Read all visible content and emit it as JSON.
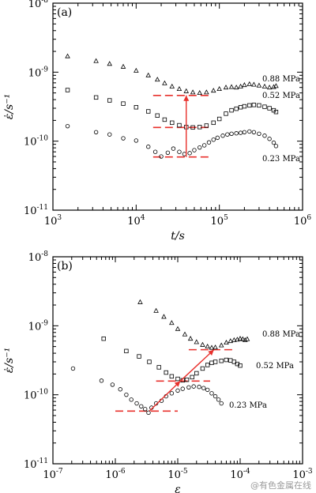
{
  "watermark": "@有色金属在线",
  "chart_data": [
    {
      "type": "scatter",
      "panel_label": "(a)",
      "xlabel": "t/s",
      "ylabel": "ε̇/s⁻¹",
      "xscale": "log",
      "yscale": "log",
      "xlim": [
        1000,
        1000000
      ],
      "ylim": [
        1e-11,
        1e-08
      ],
      "x_ticks": [
        {
          "value": 1000,
          "label": "10",
          "exp": "3"
        },
        {
          "value": 10000,
          "label": "10",
          "exp": "4"
        },
        {
          "value": 100000,
          "label": "10",
          "exp": "5"
        },
        {
          "value": 1000000,
          "label": "10",
          "exp": "6"
        }
      ],
      "y_ticks": [
        {
          "value": 1e-08,
          "label": "10",
          "exp": "-8"
        },
        {
          "value": 1e-09,
          "label": "10",
          "exp": "-9"
        },
        {
          "value": 1e-10,
          "label": "10",
          "exp": "-10"
        },
        {
          "value": 1e-11,
          "label": "10",
          "exp": "-11"
        }
      ],
      "series": [
        {
          "name": "0.88 MPa",
          "marker": "triangle",
          "points": [
            [
              1500,
              1.7e-09
            ],
            [
              3300,
              1.45e-09
            ],
            [
              4800,
              1.32e-09
            ],
            [
              7000,
              1.2e-09
            ],
            [
              10000,
              1.05e-09
            ],
            [
              14000,
              9e-10
            ],
            [
              18000,
              7.8e-10
            ],
            [
              22000,
              6.9e-10
            ],
            [
              27000,
              6.2e-10
            ],
            [
              33000,
              5.7e-10
            ],
            [
              40000,
              5.3e-10
            ],
            [
              48000,
              5.1e-10
            ],
            [
              58000,
              5e-10
            ],
            [
              70000,
              5.1e-10
            ],
            [
              85000,
              5.4e-10
            ],
            [
              100000,
              5.7e-10
            ],
            [
              120000,
              6e-10
            ],
            [
              140000,
              6.1e-10
            ],
            [
              160000,
              6e-10
            ],
            [
              180000,
              6.2e-10
            ],
            [
              200000,
              6.5e-10
            ],
            [
              230000,
              6.7e-10
            ],
            [
              260000,
              6.6e-10
            ],
            [
              300000,
              6.4e-10
            ],
            [
              350000,
              6.2e-10
            ],
            [
              400000,
              6e-10
            ],
            [
              450000,
              6.1e-10
            ],
            [
              480000,
              6.3e-10
            ]
          ]
        },
        {
          "name": "0.52 MPa",
          "marker": "square",
          "points": [
            [
              1500,
              5.5e-10
            ],
            [
              3300,
              4.3e-10
            ],
            [
              4800,
              3.9e-10
            ],
            [
              7000,
              3.5e-10
            ],
            [
              10000,
              3.1e-10
            ],
            [
              14000,
              2.7e-10
            ],
            [
              18000,
              2.35e-10
            ],
            [
              22000,
              2.05e-10
            ],
            [
              27000,
              1.85e-10
            ],
            [
              33000,
              1.7e-10
            ],
            [
              40000,
              1.6e-10
            ],
            [
              48000,
              1.58e-10
            ],
            [
              58000,
              1.6e-10
            ],
            [
              70000,
              1.68e-10
            ],
            [
              85000,
              1.85e-10
            ],
            [
              100000,
              2.1e-10
            ],
            [
              120000,
              2.5e-10
            ],
            [
              140000,
              2.8e-10
            ],
            [
              160000,
              2.95e-10
            ],
            [
              180000,
              3.1e-10
            ],
            [
              200000,
              3.2e-10
            ],
            [
              230000,
              3.3e-10
            ],
            [
              260000,
              3.35e-10
            ],
            [
              300000,
              3.3e-10
            ],
            [
              350000,
              3.15e-10
            ],
            [
              400000,
              3e-10
            ],
            [
              450000,
              2.8e-10
            ],
            [
              480000,
              2.65e-10
            ]
          ]
        },
        {
          "name": "0.23 MPa",
          "marker": "circle",
          "points": [
            [
              1500,
              1.65e-10
            ],
            [
              3300,
              1.35e-10
            ],
            [
              4800,
              1.25e-10
            ],
            [
              7000,
              1.1e-10
            ],
            [
              10000,
              1.02e-10
            ],
            [
              14000,
              8.3e-11
            ],
            [
              17000,
              7e-11
            ],
            [
              20000,
              6e-11
            ],
            [
              24000,
              6.8e-11
            ],
            [
              28000,
              7.8e-11
            ],
            [
              33000,
              7e-11
            ],
            [
              38000,
              6.5e-11
            ],
            [
              44000,
              6.7e-11
            ],
            [
              50000,
              7.4e-11
            ],
            [
              58000,
              8.1e-11
            ],
            [
              66000,
              8.7e-11
            ],
            [
              75000,
              9.6e-11
            ],
            [
              85000,
              1.05e-10
            ],
            [
              95000,
              1.12e-10
            ],
            [
              110000,
              1.2e-10
            ],
            [
              125000,
              1.25e-10
            ],
            [
              140000,
              1.28e-10
            ],
            [
              160000,
              1.3e-10
            ],
            [
              180000,
              1.32e-10
            ],
            [
              200000,
              1.35e-10
            ],
            [
              230000,
              1.38e-10
            ],
            [
              260000,
              1.35e-10
            ],
            [
              300000,
              1.28e-10
            ],
            [
              350000,
              1.2e-10
            ],
            [
              400000,
              1.08e-10
            ],
            [
              450000,
              9.5e-11
            ],
            [
              480000,
              8.5e-11
            ]
          ]
        }
      ],
      "dashed_lines": [
        {
          "x_from": 16000,
          "x_to": 80000,
          "y": 4.6e-10
        },
        {
          "x_from": 16000,
          "x_to": 80000,
          "y": 1.58e-10
        },
        {
          "x_from": 16000,
          "x_to": 80000,
          "y": 5.9e-11
        }
      ],
      "arrows": [
        {
          "from": [
            40000,
            5.9e-11
          ],
          "to": [
            40000,
            4.6e-10
          ]
        }
      ]
    },
    {
      "type": "scatter",
      "panel_label": "(b)",
      "xlabel": "ε",
      "ylabel": "ε̇/s⁻¹",
      "xscale": "log",
      "yscale": "log",
      "xlim": [
        1e-07,
        0.001
      ],
      "ylim": [
        1e-11,
        1e-08
      ],
      "x_ticks": [
        {
          "value": 1e-07,
          "label": "10",
          "exp": "-7"
        },
        {
          "value": 1e-06,
          "label": "10",
          "exp": "-6"
        },
        {
          "value": 1e-05,
          "label": "10",
          "exp": "-5"
        },
        {
          "value": 0.0001,
          "label": "10",
          "exp": "-4"
        },
        {
          "value": 0.001,
          "label": "10",
          "exp": "-3"
        }
      ],
      "y_ticks": [
        {
          "value": 1e-08,
          "label": "10",
          "exp": "-8"
        },
        {
          "value": 1e-09,
          "label": "10",
          "exp": "-9"
        },
        {
          "value": 1e-10,
          "label": "10",
          "exp": "-10"
        },
        {
          "value": 1e-11,
          "label": "10",
          "exp": "-11"
        }
      ],
      "series": [
        {
          "name": "0.88 MPa",
          "marker": "triangle",
          "points": [
            [
              2.5e-06,
              2.2e-09
            ],
            [
              4.5e-06,
              1.65e-09
            ],
            [
              6e-06,
              1.35e-09
            ],
            [
              8e-06,
              1.1e-09
            ],
            [
              1e-05,
              9e-10
            ],
            [
              1.3e-05,
              7.5e-10
            ],
            [
              1.6e-05,
              6.5e-10
            ],
            [
              2e-05,
              5.8e-10
            ],
            [
              2.5e-05,
              5.3e-10
            ],
            [
              3e-05,
              5e-10
            ],
            [
              3.5e-05,
              4.8e-10
            ],
            [
              4e-05,
              4.85e-10
            ],
            [
              5e-05,
              5.2e-10
            ],
            [
              6e-05,
              5.7e-10
            ],
            [
              7e-05,
              6e-10
            ],
            [
              8e-05,
              6.2e-10
            ],
            [
              9e-05,
              6.3e-10
            ],
            [
              0.0001,
              6.5e-10
            ],
            [
              0.00011,
              6.4e-10
            ],
            [
              0.00012,
              6.2e-10
            ],
            [
              0.00013,
              6.4e-10
            ]
          ]
        },
        {
          "name": "0.52 MPa",
          "marker": "square",
          "points": [
            [
              6.5e-07,
              6.5e-10
            ],
            [
              1.5e-06,
              4.3e-10
            ],
            [
              2.4e-06,
              3.6e-10
            ],
            [
              3.5e-06,
              3e-10
            ],
            [
              5e-06,
              2.5e-10
            ],
            [
              6.5e-06,
              2.1e-10
            ],
            [
              8e-06,
              1.85e-10
            ],
            [
              1e-05,
              1.7e-10
            ],
            [
              1.2e-05,
              1.62e-10
            ],
            [
              1.4e-05,
              1.65e-10
            ],
            [
              1.7e-05,
              1.8e-10
            ],
            [
              2e-05,
              2.05e-10
            ],
            [
              2.5e-05,
              2.4e-10
            ],
            [
              3e-05,
              2.7e-10
            ],
            [
              3.5e-05,
              2.9e-10
            ],
            [
              4e-05,
              3e-10
            ],
            [
              5e-05,
              3.1e-10
            ],
            [
              6e-05,
              3.2e-10
            ],
            [
              7e-05,
              3.15e-10
            ],
            [
              8e-05,
              3e-10
            ],
            [
              9e-05,
              2.8e-10
            ],
            [
              0.0001,
              2.65e-10
            ]
          ]
        },
        {
          "name": "0.23 MPa",
          "marker": "circle",
          "points": [
            [
              2.1e-07,
              2.4e-10
            ],
            [
              6e-07,
              1.6e-10
            ],
            [
              9e-07,
              1.4e-10
            ],
            [
              1.2e-06,
              1.2e-10
            ],
            [
              1.5e-06,
              1e-10
            ],
            [
              1.8e-06,
              8.5e-11
            ],
            [
              2.2e-06,
              7.5e-11
            ],
            [
              2.6e-06,
              6.8e-11
            ],
            [
              3e-06,
              6.2e-11
            ],
            [
              3.4e-06,
              5.5e-11
            ],
            [
              3.8e-06,
              6.5e-11
            ],
            [
              4.5e-06,
              7.5e-11
            ],
            [
              5.5e-06,
              8.2e-11
            ],
            [
              6.5e-06,
              9.5e-11
            ],
            [
              8e-06,
              1.05e-10
            ],
            [
              1e-05,
              1.15e-10
            ],
            [
              1.2e-05,
              1.22e-10
            ],
            [
              1.5e-05,
              1.28e-10
            ],
            [
              1.8e-05,
              1.32e-10
            ],
            [
              2.2e-05,
              1.3e-10
            ],
            [
              2.6e-05,
              1.25e-10
            ],
            [
              3e-05,
              1.18e-10
            ],
            [
              3.5e-05,
              1.05e-10
            ],
            [
              4e-05,
              9.5e-11
            ],
            [
              4.5e-05,
              8.5e-11
            ],
            [
              5e-05,
              7.5e-11
            ]
          ]
        }
      ],
      "dashed_lines": [
        {
          "x_from": 1.5e-05,
          "x_to": 8e-05,
          "y": 4.5e-10
        },
        {
          "x_from": 4.5e-06,
          "x_to": 3.3e-05,
          "y": 1.58e-10
        },
        {
          "x_from": 1e-06,
          "x_to": 1e-05,
          "y": 5.8e-11
        }
      ],
      "arrows": [
        {
          "from": [
            3.5e-06,
            5.8e-11
          ],
          "to": [
            1.1e-05,
            1.58e-10
          ]
        },
        {
          "from": [
            1.1e-05,
            1.58e-10
          ],
          "to": [
            3.8e-05,
            4.5e-10
          ]
        }
      ]
    }
  ]
}
